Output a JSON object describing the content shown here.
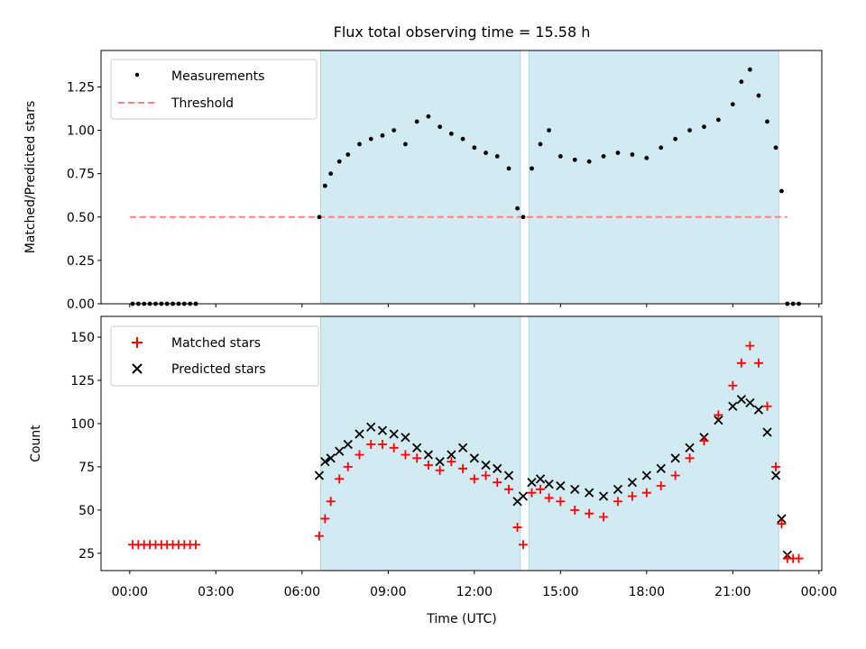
{
  "chart_data": [
    {
      "type": "scatter",
      "title": "Flux total observing time = 15.58 h",
      "xlabel": "",
      "ylabel": "Matched/Predicted stars",
      "xlim": [
        -1.0,
        24.1
      ],
      "ylim": [
        0.0,
        1.46
      ],
      "yticks": [
        "0.00",
        "0.25",
        "0.50",
        "0.75",
        "1.00",
        "1.25"
      ],
      "grid": false,
      "legend_position": "upper-left",
      "shaded_intervals_hours": [
        [
          6.65,
          13.6
        ],
        [
          13.9,
          22.6
        ]
      ],
      "shade_color": "#add8e6",
      "series": [
        {
          "name": "Measurements",
          "marker": "dot",
          "color": "#000000",
          "x_hours": [
            0.1,
            0.3,
            0.5,
            0.7,
            0.9,
            1.1,
            1.3,
            1.5,
            1.7,
            1.9,
            2.1,
            2.3,
            6.6,
            6.8,
            7.0,
            7.3,
            7.6,
            8.0,
            8.4,
            8.8,
            9.2,
            9.6,
            10.0,
            10.4,
            10.8,
            11.2,
            11.6,
            12.0,
            12.4,
            12.8,
            13.2,
            13.5,
            13.7,
            14.0,
            14.3,
            14.6,
            15.0,
            15.5,
            16.0,
            16.5,
            17.0,
            17.5,
            18.0,
            18.5,
            19.0,
            19.5,
            20.0,
            20.5,
            21.0,
            21.3,
            21.6,
            21.9,
            22.2,
            22.5,
            22.7,
            22.9,
            23.1,
            23.3
          ],
          "y_values": [
            0,
            0,
            0,
            0,
            0,
            0,
            0,
            0,
            0,
            0,
            0,
            0,
            0.5,
            0.68,
            0.75,
            0.82,
            0.86,
            0.92,
            0.95,
            0.97,
            1.0,
            0.92,
            1.05,
            1.08,
            1.02,
            0.98,
            0.95,
            0.9,
            0.87,
            0.85,
            0.78,
            0.55,
            0.5,
            0.78,
            0.92,
            1.0,
            0.85,
            0.83,
            0.82,
            0.85,
            0.87,
            0.86,
            0.84,
            0.9,
            0.95,
            1.0,
            1.02,
            1.06,
            1.15,
            1.28,
            1.35,
            1.2,
            1.05,
            0.9,
            0.65,
            0,
            0,
            0
          ]
        },
        {
          "name": "Threshold",
          "style": "dashed",
          "color": "#ff7f7f",
          "x_hours": [
            0.0,
            22.9
          ],
          "y_values": [
            0.5,
            0.5
          ]
        }
      ]
    },
    {
      "type": "scatter",
      "title": "",
      "xlabel": "Time (UTC)",
      "ylabel": "Count",
      "xlim": [
        -1.0,
        24.1
      ],
      "ylim": [
        15,
        162
      ],
      "xticks": [
        "00:00",
        "03:00",
        "06:00",
        "09:00",
        "12:00",
        "15:00",
        "18:00",
        "21:00",
        "00:00"
      ],
      "yticks": [
        "25",
        "50",
        "75",
        "100",
        "125",
        "150"
      ],
      "grid": false,
      "legend_position": "upper-left",
      "shaded_intervals_hours": [
        [
          6.65,
          13.6
        ],
        [
          13.9,
          22.6
        ]
      ],
      "shade_color": "#add8e6",
      "series": [
        {
          "name": "Matched stars",
          "marker": "plus",
          "color": "#ff0000",
          "x_hours": [
            0.1,
            0.3,
            0.5,
            0.7,
            0.9,
            1.1,
            1.3,
            1.5,
            1.7,
            1.9,
            2.1,
            2.3,
            6.6,
            6.8,
            7.0,
            7.3,
            7.6,
            8.0,
            8.4,
            8.8,
            9.2,
            9.6,
            10.0,
            10.4,
            10.8,
            11.2,
            11.6,
            12.0,
            12.4,
            12.8,
            13.2,
            13.5,
            13.7,
            14.0,
            14.3,
            14.6,
            15.0,
            15.5,
            16.0,
            16.5,
            17.0,
            17.5,
            18.0,
            18.5,
            19.0,
            19.5,
            20.0,
            20.5,
            21.0,
            21.3,
            21.6,
            21.9,
            22.2,
            22.5,
            22.7,
            22.9,
            23.1,
            23.3
          ],
          "y_values": [
            30,
            30,
            30,
            30,
            30,
            30,
            30,
            30,
            30,
            30,
            30,
            30,
            35,
            45,
            55,
            68,
            75,
            82,
            88,
            88,
            86,
            82,
            80,
            76,
            73,
            78,
            74,
            68,
            70,
            66,
            62,
            40,
            30,
            60,
            62,
            57,
            55,
            50,
            48,
            46,
            55,
            58,
            60,
            64,
            70,
            80,
            90,
            105,
            122,
            135,
            145,
            135,
            110,
            75,
            42,
            22,
            22,
            22
          ]
        },
        {
          "name": "Predicted stars",
          "marker": "x",
          "color": "#000000",
          "x_hours": [
            6.6,
            6.8,
            7.0,
            7.3,
            7.6,
            8.0,
            8.4,
            8.8,
            9.2,
            9.6,
            10.0,
            10.4,
            10.8,
            11.2,
            11.6,
            12.0,
            12.4,
            12.8,
            13.2,
            13.5,
            13.7,
            14.0,
            14.3,
            14.6,
            15.0,
            15.5,
            16.0,
            16.5,
            17.0,
            17.5,
            18.0,
            18.5,
            19.0,
            19.5,
            20.0,
            20.5,
            21.0,
            21.3,
            21.6,
            21.9,
            22.2,
            22.5,
            22.7,
            22.9
          ],
          "y_values": [
            70,
            78,
            80,
            84,
            88,
            94,
            98,
            96,
            94,
            92,
            86,
            82,
            78,
            82,
            86,
            80,
            76,
            74,
            70,
            55,
            58,
            66,
            68,
            65,
            64,
            62,
            60,
            58,
            62,
            66,
            70,
            74,
            80,
            86,
            92,
            102,
            110,
            114,
            112,
            108,
            95,
            70,
            45,
            24
          ]
        }
      ]
    }
  ]
}
